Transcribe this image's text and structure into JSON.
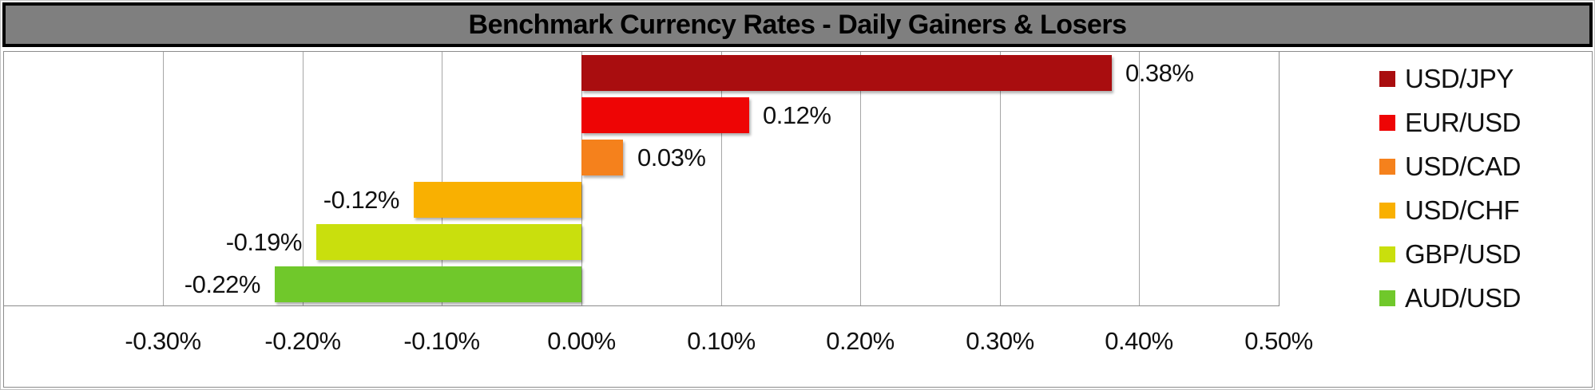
{
  "title": "Benchmark Currency Rates - Daily Gainers & Losers",
  "colors": {
    "title_bg": "#7f7f7f",
    "title_border": "#000000",
    "title_text": "#000000",
    "chart_border": "#8c8c8c",
    "gridline": "#a6a6a6",
    "plot_bg": "#ffffff"
  },
  "chart_data": {
    "type": "bar",
    "orientation": "horizontal",
    "title": "Benchmark Currency Rates - Daily Gainers & Losers",
    "categories": [
      "USD/JPY",
      "EUR/USD",
      "USD/CAD",
      "USD/CHF",
      "GBP/USD",
      "AUD/USD"
    ],
    "values": [
      0.38,
      0.12,
      0.03,
      -0.12,
      -0.19,
      -0.22
    ],
    "value_labels": [
      "0.38%",
      "0.12%",
      "0.03%",
      "-0.12%",
      "-0.19%",
      "-0.22%"
    ],
    "bar_colors": [
      "#a90d0f",
      "#ee0505",
      "#f5811c",
      "#f9b001",
      "#c9df0d",
      "#70c82b"
    ],
    "xlabel": "",
    "ylabel": "",
    "xlim": [
      -0.414,
      0.5
    ],
    "x_ticks": [
      -0.3,
      -0.2,
      -0.1,
      0.0,
      0.1,
      0.2,
      0.3,
      0.4,
      0.5
    ],
    "x_tick_labels": [
      "-0.30%",
      "-0.20%",
      "-0.10%",
      "0.00%",
      "0.10%",
      "0.20%",
      "0.30%",
      "0.40%",
      "0.50%"
    ],
    "grid": true,
    "legend_position": "right",
    "legend": [
      "USD/JPY",
      "EUR/USD",
      "USD/CAD",
      "USD/CHF",
      "GBP/USD",
      "AUD/USD"
    ]
  }
}
